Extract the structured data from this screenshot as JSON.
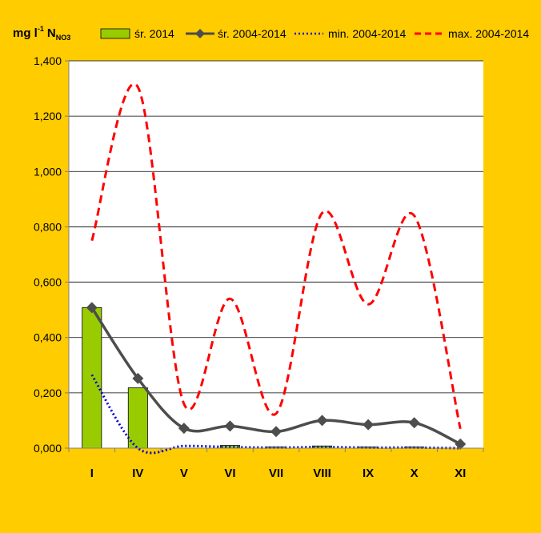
{
  "chart_data": {
    "type": "bar",
    "unit": {
      "main": "mg l",
      "sup": "-1",
      "sym": "N",
      "sub": "NO3"
    },
    "categories": [
      "I",
      "IV",
      "V",
      "VI",
      "VII",
      "VIII",
      "IX",
      "X",
      "XI"
    ],
    "y_ticks": [
      "0,000",
      "0,200",
      "0,400",
      "0,600",
      "0,800",
      "1,000",
      "1,200",
      "1,400"
    ],
    "ylim": [
      0,
      1.4
    ],
    "grid": true,
    "legend_position": "top",
    "series": [
      {
        "name": "śr. 2014",
        "kind": "bar",
        "color": "#99cc00",
        "values": [
          0.508,
          0.218,
          0.0,
          0.01,
          0.004,
          0.008,
          0.004,
          0.004,
          0.0
        ]
      },
      {
        "name": "śr. 2004-2014",
        "kind": "line-markers",
        "color": "#4d4d4d",
        "values": [
          0.508,
          0.252,
          0.072,
          0.08,
          0.06,
          0.1,
          0.085,
          0.092,
          0.015
        ]
      },
      {
        "name": "min. 2004-2014",
        "kind": "line-dotted",
        "color": "#0000cc",
        "values": [
          0.265,
          0.0,
          0.008,
          0.004,
          0.002,
          0.004,
          0.002,
          0.002,
          0.0
        ]
      },
      {
        "name": "max. 2004-2014",
        "kind": "line-dashed",
        "color": "#ff0000",
        "values": [
          0.75,
          1.305,
          0.16,
          0.54,
          0.125,
          0.85,
          0.52,
          0.84,
          0.07
        ]
      }
    ]
  }
}
